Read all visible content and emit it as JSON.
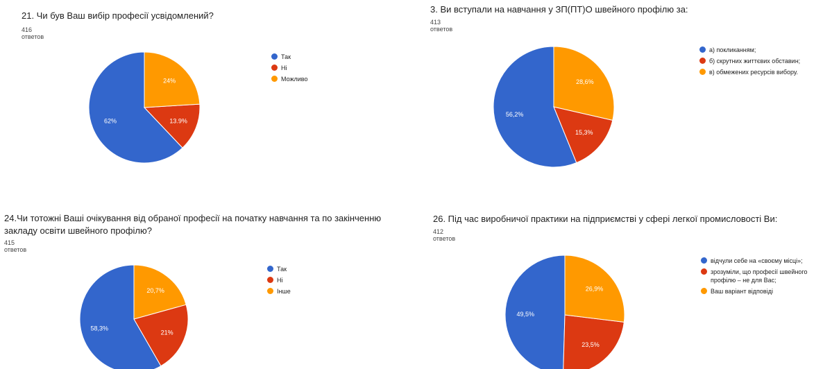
{
  "chart_data": [
    {
      "type": "pie",
      "title": "21. Чи був Ваш вибір професії усвідомлений?",
      "subtitle": "416 ответов",
      "categories": [
        "Так",
        "Ні",
        "Можливо"
      ],
      "values": [
        62,
        13.9,
        24
      ],
      "labels": [
        "62%",
        "13.9%",
        "24%"
      ],
      "colors": [
        "#3366cc",
        "#dc3912",
        "#ff9900"
      ],
      "legend": "right"
    },
    {
      "type": "pie",
      "title": "3. Ви вступали на навчання у ЗП(ПТ)О швейного профілю за:",
      "subtitle": "413 ответов",
      "categories": [
        "а) покликанням;",
        "б) скрутних життєвих обставин;",
        "в) обмежених ресурсів вибору."
      ],
      "values": [
        56.2,
        15.3,
        28.6
      ],
      "labels": [
        "56,2%",
        "15,3%",
        "28,6%"
      ],
      "colors": [
        "#3366cc",
        "#dc3912",
        "#ff9900"
      ],
      "legend": "right"
    },
    {
      "type": "pie",
      "title": "24.Чи тотожні Ваші очікування від обраної професії на початку навчання та по закінченню закладу освіти швейного профілю?",
      "subtitle": "415 ответов",
      "categories": [
        "Так",
        "Ні",
        "Інше"
      ],
      "values": [
        58.3,
        21,
        20.7
      ],
      "labels": [
        "58,3%",
        "21%",
        "20,7%"
      ],
      "colors": [
        "#3366cc",
        "#dc3912",
        "#ff9900"
      ],
      "legend": "right"
    },
    {
      "type": "pie",
      "title": "26. Під час виробничої практики на підприємстві у сфері легкої промисловості Ви:",
      "subtitle": "412 ответов",
      "categories": [
        "відчули себе на «своєму місці»;",
        "зрозуміли, що професії швейного профілю – не для Вас;",
        "Ваш варіант відповіді"
      ],
      "values": [
        49.5,
        23.5,
        26.9
      ],
      "labels": [
        "49,5%",
        "23,5%",
        "26,9%"
      ],
      "colors": [
        "#3366cc",
        "#dc3912",
        "#ff9900"
      ],
      "legend": "right"
    }
  ]
}
